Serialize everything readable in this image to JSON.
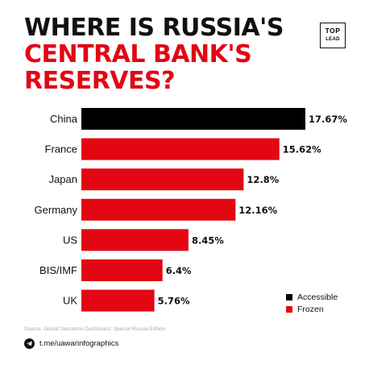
{
  "title": {
    "line1": "WHERE IS RUSSIA'S",
    "line2": "CENTRAL BANK'S",
    "line3": "RESERVES?"
  },
  "logo": {
    "top": "TOP",
    "bottom": "LEAD"
  },
  "colors": {
    "accessible": "#000000",
    "frozen": "#e30613",
    "title_black": "#111111",
    "title_red": "#e30613"
  },
  "chart_data": {
    "type": "bar",
    "orientation": "horizontal",
    "categories": [
      "China",
      "France",
      "Japan",
      "Germany",
      "US",
      "BIS/IMF",
      "UK"
    ],
    "values": [
      17.67,
      15.62,
      12.8,
      12.16,
      8.45,
      6.4,
      5.76
    ],
    "value_labels": [
      "17.67%",
      "15.62%",
      "12.8%",
      "12.16%",
      "8.45%",
      "6.4%",
      "5.76%"
    ],
    "status": [
      "Accessible",
      "Frozen",
      "Frozen",
      "Frozen",
      "Frozen",
      "Frozen",
      "Frozen"
    ],
    "xlim": [
      0,
      17.67
    ],
    "grid": false,
    "legend": {
      "position": "bottom-right",
      "entries": [
        {
          "label": "Accessible",
          "color": "#000000"
        },
        {
          "label": "Frozen",
          "color": "#e30613"
        }
      ]
    }
  },
  "source": "Source: Global Sanctions Dashboard: Special Russia Edition",
  "footer": {
    "link_text": "t.me/uawarinfographics",
    "icon": "telegram-icon"
  }
}
